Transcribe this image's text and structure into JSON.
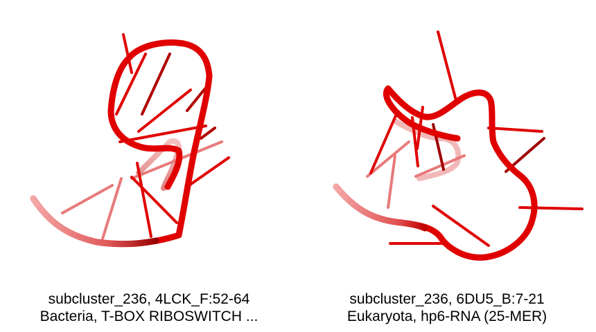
{
  "panels": [
    {
      "structure_icon": "rna-cartoon-structure",
      "caption_line1": "subcluster_236, 4LCK_F:52-64",
      "caption_line2": "Bacteria, T-BOX RIBOSWITCH ..."
    },
    {
      "structure_icon": "rna-cartoon-structure",
      "caption_line1": "subcluster_236, 6DU5_B:7-21",
      "caption_line2": "Eukaryota, hp6-RNA (25-MER)"
    }
  ],
  "colors": {
    "backbone": "#e00000",
    "backbone_dark": "#8a0000",
    "backbone_faded": "#f0a0a0",
    "background": "#ffffff"
  }
}
